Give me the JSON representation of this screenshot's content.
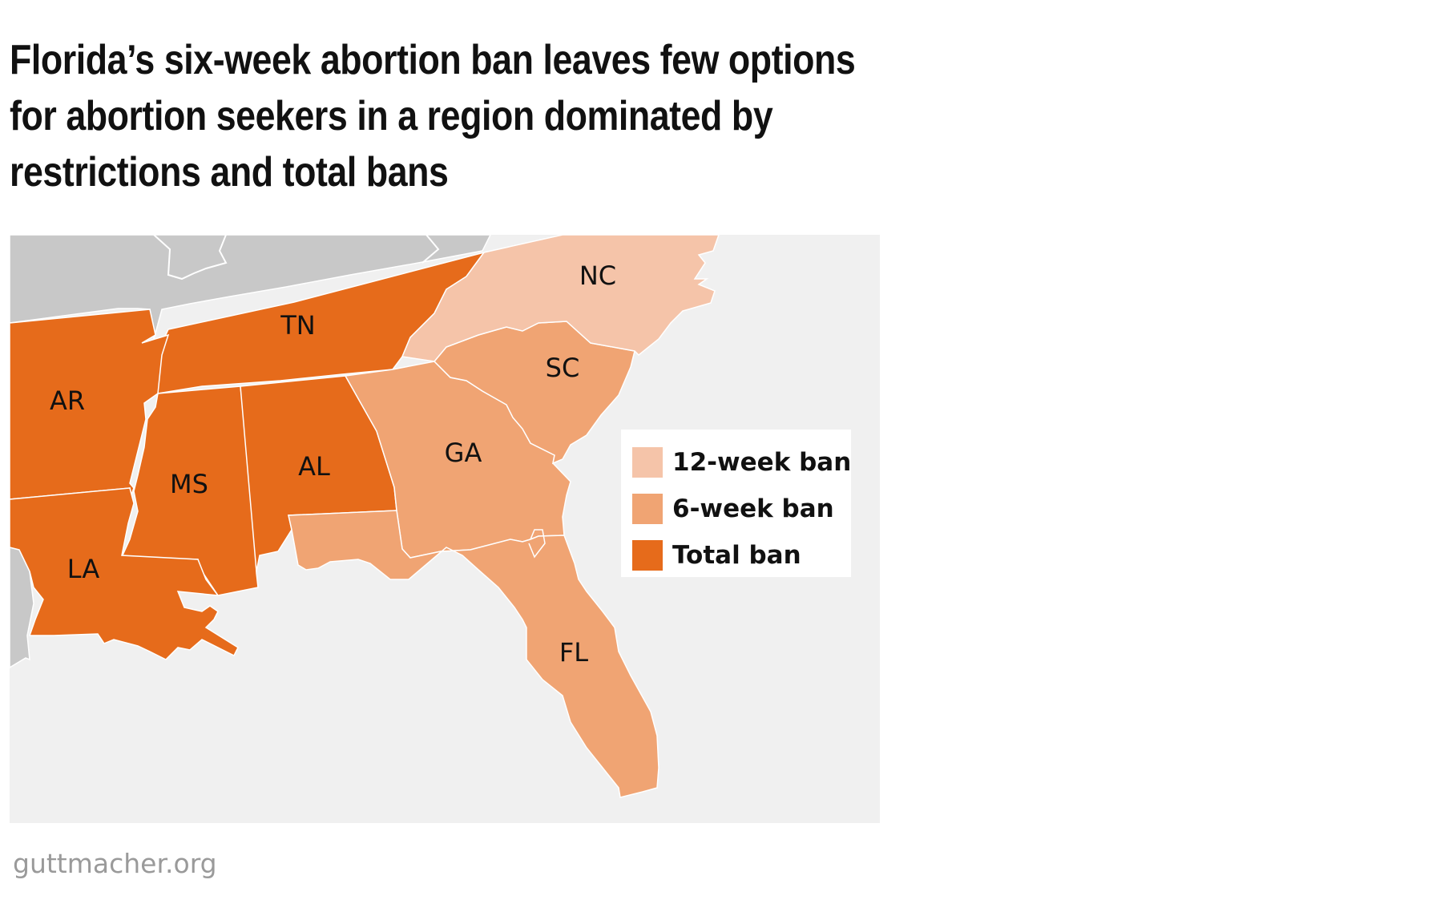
{
  "title_lines": [
    "Florida’s six-week abortion ban leaves few options",
    "for abortion seekers in a region dominated by",
    "restrictions and total bans"
  ],
  "colors": {
    "background": "#f0f0f0",
    "other_states": "#c8c8c8",
    "twelve_week": "#f5c4a9",
    "six_week": "#f0a473",
    "total_ban": "#e66b1b",
    "border": "#ffffff"
  },
  "states": [
    {
      "abbr": "NC",
      "category": "12-week ban"
    },
    {
      "abbr": "SC",
      "category": "6-week ban"
    },
    {
      "abbr": "GA",
      "category": "6-week ban"
    },
    {
      "abbr": "FL",
      "category": "6-week ban"
    },
    {
      "abbr": "TN",
      "category": "Total ban"
    },
    {
      "abbr": "AR",
      "category": "Total ban"
    },
    {
      "abbr": "MS",
      "category": "Total ban"
    },
    {
      "abbr": "AL",
      "category": "Total ban"
    },
    {
      "abbr": "LA",
      "category": "Total ban"
    }
  ],
  "legend": [
    {
      "label": "12-week ban",
      "color": "#f5c4a9"
    },
    {
      "label": "6-week ban",
      "color": "#f0a473"
    },
    {
      "label": "Total ban",
      "color": "#e66b1b"
    }
  ],
  "source": "guttmacher.org"
}
